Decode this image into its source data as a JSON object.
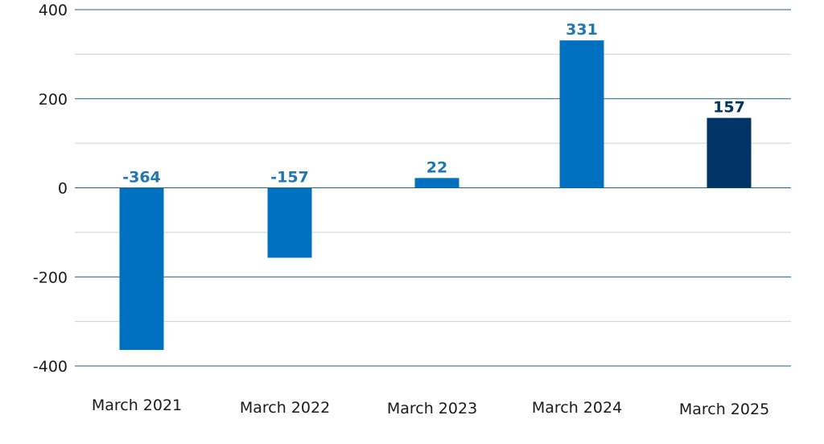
{
  "chart_data": {
    "type": "bar",
    "categories": [
      "March 2021",
      "March 2022",
      "March 2023",
      "March 2024",
      "March 2025"
    ],
    "values": [
      -364,
      -157,
      22,
      331,
      157
    ],
    "data_labels": [
      "-364",
      "-157",
      "22",
      "331",
      "157"
    ],
    "ylim": [
      -400,
      400
    ],
    "y_ticks": [
      400,
      200,
      0,
      -200,
      -400
    ],
    "y_tick_labels": [
      "400",
      "200",
      "0",
      "-200",
      "-400"
    ],
    "grid": true,
    "bar_colors": [
      "#0070c0",
      "#0070c0",
      "#0070c0",
      "#0070c0",
      "#003366"
    ],
    "label_colors": [
      "#1f77b4",
      "#1f77b4",
      "#1f77b4",
      "#1f77b4",
      "#003366"
    ],
    "major_gridline_color": "#1f5f8b",
    "minor_gridline_color": "#c8d3dc"
  }
}
